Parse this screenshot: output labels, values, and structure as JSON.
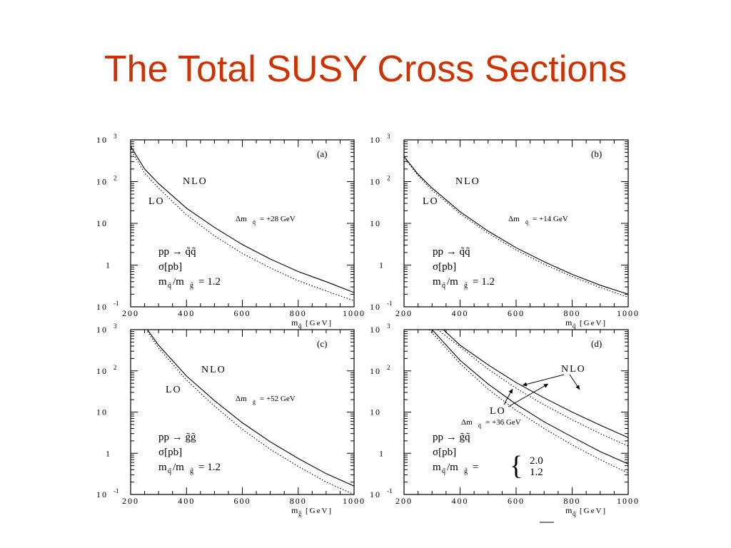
{
  "slide": {
    "title": "The Total SUSY Cross Sections",
    "title_color": "#cc3300"
  },
  "chart_data": [
    {
      "type": "line",
      "panel_label": "(a)",
      "scale": "log",
      "xlim": [
        200,
        1000
      ],
      "ylim": [
        0.1,
        1000
      ],
      "x_ticks": [
        "200",
        "400",
        "600",
        "800",
        "1000"
      ],
      "y_ticks": [
        {
          "base": "10",
          "exp": "3"
        },
        {
          "base": "10",
          "exp": "2"
        },
        {
          "base": "10",
          "exp": ""
        },
        {
          "base": "1",
          "exp": ""
        },
        {
          "base": "10",
          "exp": "-1"
        }
      ],
      "xlabel": {
        "main": "m",
        "sub": "q̃",
        "unit": "[GeV]"
      },
      "annotations": {
        "nlo": "NLO",
        "lo": "LO",
        "delta": "Δm",
        "delta_sub": "q̃",
        "delta_value": "= +28 GeV",
        "process": "pp → q̃q̃",
        "sigma": "σ[pb]",
        "ratio_m1": "m",
        "ratio_sub1": "q̃",
        "ratio_mid": "/m",
        "ratio_sub2": "g̃",
        "ratio_value": "= 1.2"
      },
      "series": [
        {
          "name": "NLO",
          "style": "solid",
          "x": [
            200,
            250,
            300,
            400,
            500,
            600,
            700,
            800,
            900,
            1000
          ],
          "y": [
            700,
            200,
            90,
            23,
            8,
            3.1,
            1.4,
            0.7,
            0.4,
            0.22
          ]
        },
        {
          "name": "LO",
          "style": "dotted",
          "x": [
            200,
            250,
            300,
            400,
            500,
            600,
            700,
            800,
            900,
            1000
          ],
          "y": [
            600,
            160,
            70,
            16,
            5,
            1.9,
            0.85,
            0.42,
            0.24,
            0.14
          ]
        }
      ]
    },
    {
      "type": "line",
      "panel_label": "(b)",
      "scale": "log",
      "xlim": [
        200,
        1000
      ],
      "ylim": [
        0.1,
        1000
      ],
      "x_ticks": [
        "200",
        "400",
        "600",
        "800",
        "1000"
      ],
      "y_ticks": [
        {
          "base": "10",
          "exp": "3"
        },
        {
          "base": "10",
          "exp": "2"
        },
        {
          "base": "10",
          "exp": ""
        },
        {
          "base": "1",
          "exp": ""
        },
        {
          "base": "10",
          "exp": "-1"
        }
      ],
      "xlabel": {
        "main": "m",
        "sub": "q̃",
        "unit": "[GeV]"
      },
      "annotations": {
        "nlo": "NLO",
        "lo": "LO",
        "delta": "Δm",
        "delta_sub": "q̃",
        "delta_value": "= +14 GeV",
        "process": "pp → q̃q̃",
        "sigma": "σ[pb]",
        "ratio_m1": "m",
        "ratio_sub1": "q̃",
        "ratio_mid": "/m",
        "ratio_sub2": "g̃",
        "ratio_value": "= 1.2"
      },
      "series": [
        {
          "name": "NLO",
          "style": "solid",
          "x": [
            200,
            250,
            300,
            400,
            500,
            600,
            700,
            800,
            900,
            1000
          ],
          "y": [
            400,
            150,
            70,
            19,
            6.5,
            2.6,
            1.2,
            0.6,
            0.33,
            0.2
          ]
        },
        {
          "name": "LO",
          "style": "dotted",
          "x": [
            200,
            250,
            300,
            400,
            500,
            600,
            700,
            800,
            900,
            1000
          ],
          "y": [
            380,
            140,
            62,
            17,
            5.8,
            2.3,
            1.05,
            0.53,
            0.29,
            0.17
          ]
        }
      ]
    },
    {
      "type": "line",
      "panel_label": "(c)",
      "scale": "log",
      "xlim": [
        200,
        1000
      ],
      "ylim": [
        0.1,
        1000
      ],
      "x_ticks": [
        "200",
        "400",
        "600",
        "800",
        "1000"
      ],
      "y_ticks": [
        {
          "base": "10",
          "exp": "3"
        },
        {
          "base": "10",
          "exp": "2"
        },
        {
          "base": "10",
          "exp": ""
        },
        {
          "base": "1",
          "exp": ""
        },
        {
          "base": "10",
          "exp": "-1"
        }
      ],
      "xlabel": {
        "main": "m",
        "sub": "g̃",
        "unit": "[GeV]"
      },
      "annotations": {
        "nlo": "NLO",
        "lo": "LO",
        "delta": "Δm",
        "delta_sub": "g̃",
        "delta_value": "= +52 GeV",
        "process": "pp → g̃g̃",
        "sigma": "σ[pb]",
        "ratio_m1": "m",
        "ratio_sub1": "q̃",
        "ratio_mid": "/m",
        "ratio_sub2": "g̃",
        "ratio_value": "= 1.2"
      },
      "series": [
        {
          "name": "NLO",
          "style": "solid",
          "x": [
            260,
            300,
            400,
            500,
            600,
            700,
            800,
            900,
            1000
          ],
          "y": [
            1000,
            420,
            75,
            19,
            5.5,
            1.9,
            0.75,
            0.32,
            0.16
          ]
        },
        {
          "name": "LO",
          "style": "dotted",
          "x": [
            260,
            300,
            400,
            500,
            600,
            700,
            800,
            900,
            1000
          ],
          "y": [
            900,
            360,
            60,
            14,
            3.8,
            1.25,
            0.48,
            0.2,
            0.1
          ]
        }
      ]
    },
    {
      "type": "line",
      "panel_label": "(d)",
      "scale": "log",
      "xlim": [
        200,
        1000
      ],
      "ylim": [
        0.1,
        1000
      ],
      "x_ticks": [
        "200",
        "400",
        "600",
        "800",
        "1000"
      ],
      "y_ticks": [
        {
          "base": "10",
          "exp": "3"
        },
        {
          "base": "10",
          "exp": "2"
        },
        {
          "base": "10",
          "exp": ""
        },
        {
          "base": "1",
          "exp": ""
        },
        {
          "base": "10",
          "exp": "-1"
        }
      ],
      "xlabel": {
        "main": "m",
        "sub": "q̃",
        "unit": "[GeV]"
      },
      "annotations": {
        "nlo": "NLO",
        "lo": "LO",
        "delta": "Δm",
        "delta_sub": "q̃",
        "delta_value": "= +36 GeV",
        "process": "pp → g̃q̃",
        "sigma": "σ[pb]",
        "ratio_m1": "m",
        "ratio_sub1": "q̃",
        "ratio_mid": "/m",
        "ratio_sub2": "g̃",
        "ratio_value": "=",
        "ratio_opt1": "2.0",
        "ratio_opt2": "1.2"
      },
      "series": [
        {
          "name": "NLO (2.0)",
          "style": "solid",
          "x": [
            340,
            400,
            500,
            600,
            700,
            800,
            900,
            1000
          ],
          "y": [
            1000,
            420,
            140,
            52,
            22,
            10,
            4.8,
            2.4
          ]
        },
        {
          "name": "LO (2.0)",
          "style": "dotted",
          "x": [
            320,
            400,
            500,
            600,
            700,
            800,
            900,
            1000
          ],
          "y": [
            1000,
            380,
            110,
            38,
            15,
            6.5,
            3.0,
            1.5
          ]
        },
        {
          "name": "NLO (1.2)",
          "style": "solid",
          "x": [
            300,
            400,
            500,
            600,
            700,
            800,
            900,
            1000
          ],
          "y": [
            1000,
            180,
            48,
            15.5,
            5.8,
            2.5,
            1.1,
            0.55
          ]
        },
        {
          "name": "LO (1.2)",
          "style": "dotted",
          "x": [
            290,
            400,
            500,
            600,
            700,
            800,
            900,
            1000
          ],
          "y": [
            1000,
            150,
            36,
            11,
            4.0,
            1.6,
            0.7,
            0.33
          ]
        }
      ]
    }
  ]
}
